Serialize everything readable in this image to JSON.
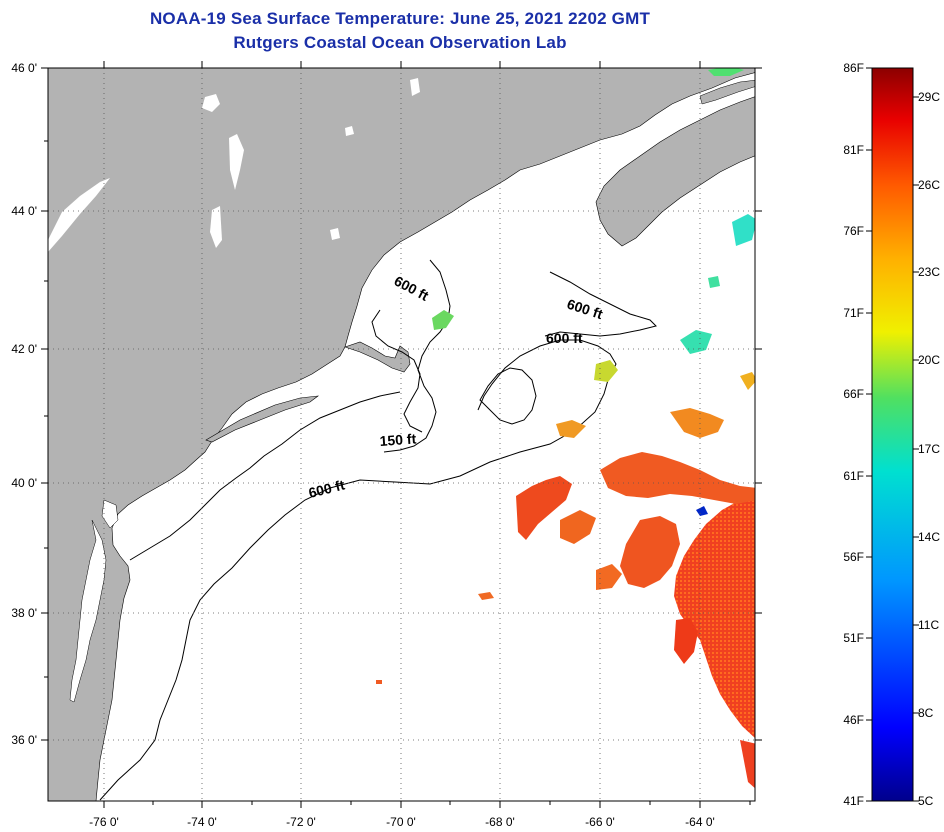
{
  "title": "NOAA-19 Sea Surface Temperature:  June 25, 2021 2202 GMT",
  "subtitle": "Rutgers Coastal Ocean Observation Lab",
  "axes": {
    "lon_labels": [
      "-76 0'",
      "-74 0'",
      "-72 0'",
      "-70 0'",
      "-68 0'",
      "-66 0'",
      "-64 0'"
    ],
    "lat_labels": [
      "46 0'",
      "44 0'",
      "42 0'",
      "40 0'",
      "38 0'",
      "36 0'"
    ]
  },
  "contours": [
    {
      "label": "600 ft",
      "id": "c1"
    },
    {
      "label": "600 ft",
      "id": "c2"
    },
    {
      "label": "600 ft",
      "id": "c3"
    },
    {
      "label": "150 ft",
      "id": "c4"
    },
    {
      "label": "600 ft",
      "id": "c5"
    }
  ],
  "colorbar": {
    "fahrenheit": [
      "86F",
      "81F",
      "76F",
      "71F",
      "66F",
      "61F",
      "56F",
      "51F",
      "46F",
      "41F"
    ],
    "celsius": [
      "29C",
      "26C",
      "23C",
      "20C",
      "17C",
      "14C",
      "11C",
      "8C",
      "5C"
    ]
  },
  "colors": {
    "title": "#1a2fa8",
    "land": "#b3b3b3",
    "ocean": "#ffffff",
    "sst_warm": "#e8391a",
    "sst_hot": "#ff2a10"
  }
}
